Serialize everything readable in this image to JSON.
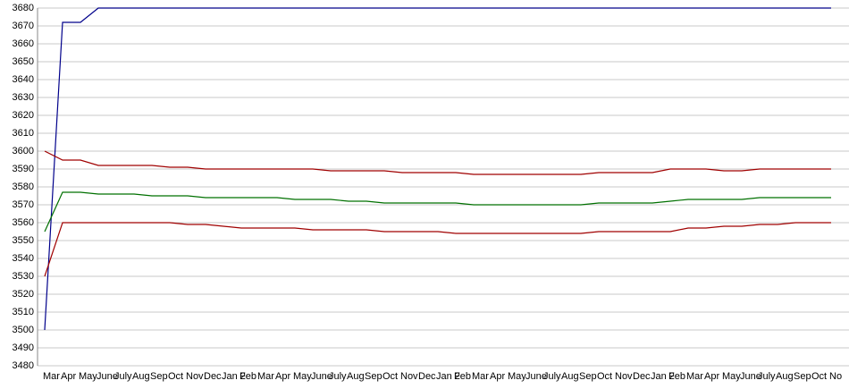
{
  "chart_data": {
    "type": "line",
    "categories": [
      "Mar",
      "Apr",
      "May",
      "June",
      "July",
      "Aug",
      "Sep",
      "Oct",
      "Nov",
      "Dec",
      "Jan 2",
      "Feb",
      "Mar",
      "Apr",
      "May",
      "June",
      "July",
      "Aug",
      "Sep",
      "Oct",
      "Nov",
      "Dec",
      "Jan 2",
      "Feb",
      "Mar",
      "Apr",
      "May",
      "June",
      "July",
      "Aug",
      "Sep",
      "Oct",
      "Nov",
      "Dec",
      "Jan 2",
      "Feb",
      "Mar",
      "Apr",
      "May",
      "June",
      "July",
      "Aug",
      "Sep",
      "Oct",
      "No"
    ],
    "series": [
      {
        "color": "#00008b",
        "values": [
          3500,
          3672,
          3672,
          3680,
          3680,
          3680,
          3680,
          3680,
          3680,
          3680,
          3680,
          3680,
          3680,
          3680,
          3680,
          3680,
          3680,
          3680,
          3680,
          3680,
          3680,
          3680,
          3680,
          3680,
          3680,
          3680,
          3680,
          3680,
          3680,
          3680,
          3680,
          3680,
          3680,
          3680,
          3680,
          3680,
          3680,
          3680,
          3680,
          3680,
          3680,
          3680,
          3680,
          3680,
          3680
        ]
      },
      {
        "color": "#a00000",
        "values": [
          3600,
          3595,
          3595,
          3592,
          3592,
          3592,
          3592,
          3591,
          3591,
          3590,
          3590,
          3590,
          3590,
          3590,
          3590,
          3590,
          3589,
          3589,
          3589,
          3589,
          3588,
          3588,
          3588,
          3588,
          3587,
          3587,
          3587,
          3587,
          3587,
          3587,
          3587,
          3588,
          3588,
          3588,
          3588,
          3590,
          3590,
          3590,
          3589,
          3589,
          3590,
          3590,
          3590,
          3590,
          3590
        ]
      },
      {
        "color": "#007000",
        "values": [
          3555,
          3577,
          3577,
          3576,
          3576,
          3576,
          3575,
          3575,
          3575,
          3574,
          3574,
          3574,
          3574,
          3574,
          3573,
          3573,
          3573,
          3572,
          3572,
          3571,
          3571,
          3571,
          3571,
          3571,
          3570,
          3570,
          3570,
          3570,
          3570,
          3570,
          3570,
          3571,
          3571,
          3571,
          3571,
          3572,
          3573,
          3573,
          3573,
          3573,
          3574,
          3574,
          3574,
          3574,
          3574
        ]
      },
      {
        "color": "#a00000",
        "values": [
          3530,
          3560,
          3560,
          3560,
          3560,
          3560,
          3560,
          3560,
          3559,
          3559,
          3558,
          3557,
          3557,
          3557,
          3557,
          3556,
          3556,
          3556,
          3556,
          3555,
          3555,
          3555,
          3555,
          3554,
          3554,
          3554,
          3554,
          3554,
          3554,
          3554,
          3554,
          3555,
          3555,
          3555,
          3555,
          3555,
          3557,
          3557,
          3558,
          3558,
          3559,
          3559,
          3560,
          3560,
          3560
        ]
      }
    ],
    "ylim": [
      3480,
      3680
    ],
    "yticks": [
      3480,
      3490,
      3500,
      3510,
      3520,
      3530,
      3540,
      3550,
      3560,
      3570,
      3580,
      3590,
      3600,
      3610,
      3620,
      3630,
      3640,
      3650,
      3660,
      3670,
      3680
    ],
    "grid": true
  }
}
